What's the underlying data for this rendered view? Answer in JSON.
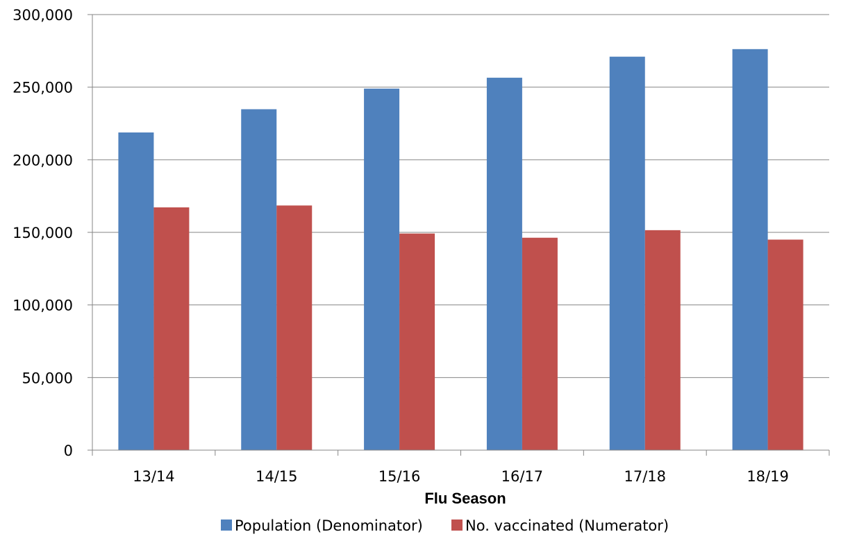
{
  "chart_data": {
    "type": "bar",
    "title": "",
    "xlabel": "Flu Season",
    "ylabel": "",
    "categories": [
      "13/14",
      "14/15",
      "15/16",
      "16/17",
      "17/18",
      "18/19"
    ],
    "series": [
      {
        "name": "Population (Denominator)",
        "values": [
          218800,
          234800,
          249000,
          256500,
          271000,
          276200
        ],
        "color": "#4F81BD"
      },
      {
        "name": "No. vaccinated (Numerator)",
        "values": [
          167200,
          168500,
          149200,
          146300,
          151500,
          145000
        ],
        "color": "#C0504D"
      }
    ],
    "ylim": [
      0,
      300000
    ],
    "yticks": [
      0,
      50000,
      100000,
      150000,
      200000,
      250000,
      300000
    ],
    "ytick_labels": [
      "0",
      "50,000",
      "100,000",
      "150,000",
      "200,000",
      "250,000",
      "300,000"
    ],
    "grid": true,
    "legend_position": "bottom",
    "colors": {
      "gridline": "#868686",
      "axis": "#868686"
    }
  }
}
